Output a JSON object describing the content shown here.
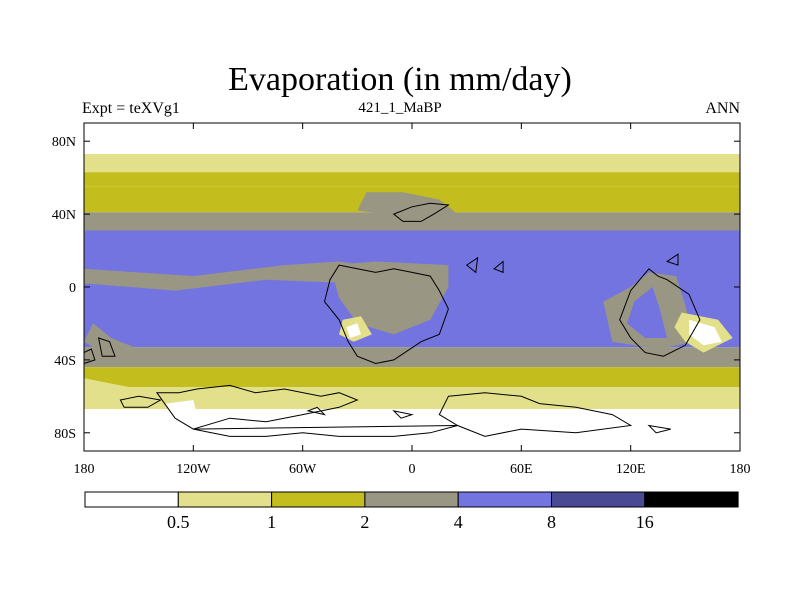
{
  "header": {
    "title": "Evaporation (in mm/day)",
    "left_label": "Expt = teXVg1",
    "center_label": "421_1_MaBP",
    "right_label": "ANN"
  },
  "colors": {
    "c0": "#ffffff",
    "c1": "#e2e08a",
    "c2": "#c3bd1d",
    "c3": "#999683",
    "c4": "#7474e0",
    "c5": "#494a94",
    "c6": "#000000"
  },
  "chart_data": {
    "type": "heatmap",
    "title": "Evaporation (in mm/day)",
    "subtitle": "421_1_MaBP",
    "xlabel": "",
    "ylabel": "",
    "xlim": [
      -180,
      180
    ],
    "ylim": [
      -90,
      90
    ],
    "x_ticks": [
      {
        "value": -180,
        "label": "180"
      },
      {
        "value": -120,
        "label": "120W"
      },
      {
        "value": -60,
        "label": "60W"
      },
      {
        "value": 0,
        "label": "0"
      },
      {
        "value": 60,
        "label": "60E"
      },
      {
        "value": 120,
        "label": "120E"
      },
      {
        "value": 180,
        "label": "180"
      }
    ],
    "y_ticks": [
      {
        "value": 80,
        "label": "80N"
      },
      {
        "value": 40,
        "label": "40N"
      },
      {
        "value": 0,
        "label": "0"
      },
      {
        "value": -40,
        "label": "40S"
      },
      {
        "value": -80,
        "label": "80S"
      }
    ],
    "colorbar": {
      "thresholds": [
        "0.5",
        "1",
        "2",
        "4",
        "8",
        "16"
      ],
      "colors": [
        "#ffffff",
        "#e2e08a",
        "#c3bd1d",
        "#999683",
        "#7474e0",
        "#494a94",
        "#000000"
      ]
    },
    "zonal_bands": [
      {
        "lat_from": 90,
        "lat_to": 73,
        "level": 0
      },
      {
        "lat_from": 73,
        "lat_to": 63,
        "level": 1
      },
      {
        "lat_from": 63,
        "lat_to": 55,
        "level": 2
      },
      {
        "lat_from": 55,
        "lat_to": 41,
        "level": 2
      },
      {
        "lat_from": 41,
        "lat_to": 31,
        "level": 3
      },
      {
        "lat_from": 31,
        "lat_to": -33,
        "level": 4
      },
      {
        "lat_from": -33,
        "lat_to": -44,
        "level": 3
      },
      {
        "lat_from": -44,
        "lat_to": -55,
        "level": 2
      },
      {
        "lat_from": -55,
        "lat_to": -67,
        "level": 1
      },
      {
        "lat_from": -67,
        "lat_to": -90,
        "level": 0
      }
    ],
    "patches": [
      {
        "level": 3,
        "points": [
          [
            -180,
            10
          ],
          [
            -120,
            6
          ],
          [
            -70,
            12
          ],
          [
            -40,
            14
          ],
          [
            -10,
            10
          ],
          [
            0,
            6
          ],
          [
            -30,
            2
          ],
          [
            -80,
            4
          ],
          [
            -130,
            -2
          ],
          [
            -180,
            2
          ]
        ]
      },
      {
        "level": 3,
        "points": [
          [
            -45,
            12
          ],
          [
            -20,
            14
          ],
          [
            20,
            12
          ],
          [
            20,
            0
          ],
          [
            10,
            -18
          ],
          [
            -10,
            -26
          ],
          [
            -30,
            -20
          ],
          [
            -40,
            -6
          ]
        ]
      },
      {
        "level": 3,
        "points": [
          [
            -25,
            52
          ],
          [
            -5,
            52
          ],
          [
            15,
            48
          ],
          [
            25,
            40
          ],
          [
            5,
            36
          ],
          [
            -15,
            40
          ],
          [
            -30,
            42
          ]
        ]
      },
      {
        "level": 3,
        "points": [
          [
            105,
            -8
          ],
          [
            120,
            0
          ],
          [
            130,
            8
          ],
          [
            145,
            6
          ],
          [
            150,
            -10
          ],
          [
            155,
            -30
          ],
          [
            135,
            -34
          ],
          [
            110,
            -30
          ]
        ]
      },
      {
        "level": 4,
        "points": [
          [
            122,
            -8
          ],
          [
            132,
            0
          ],
          [
            136,
            -12
          ],
          [
            140,
            -28
          ],
          [
            128,
            -28
          ],
          [
            118,
            -20
          ]
        ]
      },
      {
        "level": 3,
        "points": [
          [
            -175,
            -20
          ],
          [
            -165,
            -28
          ],
          [
            -150,
            -34
          ],
          [
            -170,
            -36
          ],
          [
            -180,
            -30
          ]
        ]
      },
      {
        "level": 1,
        "points": [
          [
            -38,
            -18
          ],
          [
            -28,
            -16
          ],
          [
            -22,
            -26
          ],
          [
            -32,
            -30
          ],
          [
            -40,
            -26
          ]
        ]
      },
      {
        "level": 0,
        "points": [
          [
            -36,
            -22
          ],
          [
            -30,
            -20
          ],
          [
            -28,
            -26
          ],
          [
            -34,
            -28
          ]
        ]
      },
      {
        "level": 1,
        "points": [
          [
            148,
            -14
          ],
          [
            168,
            -18
          ],
          [
            176,
            -28
          ],
          [
            160,
            -36
          ],
          [
            150,
            -30
          ],
          [
            144,
            -22
          ]
        ]
      },
      {
        "level": 0,
        "points": [
          [
            152,
            -18
          ],
          [
            166,
            -22
          ],
          [
            170,
            -30
          ],
          [
            160,
            -32
          ],
          [
            152,
            -26
          ]
        ]
      },
      {
        "level": 1,
        "points": [
          [
            -180,
            -50
          ],
          [
            -140,
            -58
          ],
          [
            -110,
            -62
          ],
          [
            -140,
            -66
          ],
          [
            -180,
            -60
          ]
        ]
      },
      {
        "level": 0,
        "points": [
          [
            -135,
            -64
          ],
          [
            -120,
            -62
          ],
          [
            -118,
            -70
          ],
          [
            -132,
            -72
          ]
        ]
      }
    ],
    "land_outlines": [
      [
        [
          -40,
          12
        ],
        [
          -30,
          10
        ],
        [
          -20,
          8
        ],
        [
          -10,
          10
        ],
        [
          0,
          8
        ],
        [
          10,
          6
        ],
        [
          15,
          -2
        ],
        [
          20,
          -12
        ],
        [
          15,
          -26
        ],
        [
          5,
          -30
        ],
        [
          -10,
          -40
        ],
        [
          -20,
          -42
        ],
        [
          -30,
          -38
        ],
        [
          -35,
          -30
        ],
        [
          -40,
          -18
        ],
        [
          -48,
          -8
        ],
        [
          -45,
          4
        ]
      ],
      [
        [
          -10,
          40
        ],
        [
          0,
          44
        ],
        [
          10,
          46
        ],
        [
          20,
          45
        ],
        [
          12,
          40
        ],
        [
          5,
          36
        ],
        [
          -5,
          36
        ]
      ],
      [
        [
          120,
          -2
        ],
        [
          125,
          4
        ],
        [
          130,
          10
        ],
        [
          135,
          6
        ],
        [
          140,
          4
        ],
        [
          152,
          -4
        ],
        [
          158,
          -18
        ],
        [
          150,
          -32
        ],
        [
          138,
          -38
        ],
        [
          128,
          -36
        ],
        [
          120,
          -28
        ],
        [
          114,
          -18
        ]
      ],
      [
        [
          -172,
          -28
        ],
        [
          -166,
          -30
        ],
        [
          -163,
          -38
        ],
        [
          -170,
          -38
        ]
      ],
      [
        [
          -180,
          -36
        ],
        [
          -176,
          -34
        ],
        [
          -174,
          -40
        ],
        [
          -180,
          -42
        ]
      ],
      [
        [
          -140,
          -58
        ],
        [
          -128,
          -58
        ],
        [
          -118,
          -56
        ],
        [
          -100,
          -54
        ],
        [
          -86,
          -58
        ],
        [
          -70,
          -56
        ],
        [
          -50,
          -60
        ],
        [
          -40,
          -58
        ],
        [
          -30,
          -62
        ],
        [
          -40,
          -66
        ],
        [
          -60,
          -70
        ],
        [
          -80,
          -74
        ],
        [
          -100,
          -72
        ],
        [
          -120,
          -78
        ],
        [
          -130,
          -72
        ]
      ],
      [
        [
          -160,
          -62
        ],
        [
          -150,
          -60
        ],
        [
          -138,
          -62
        ],
        [
          -145,
          -66
        ],
        [
          -158,
          -66
        ]
      ],
      [
        [
          20,
          -60
        ],
        [
          40,
          -58
        ],
        [
          60,
          -60
        ],
        [
          70,
          -64
        ],
        [
          90,
          -66
        ],
        [
          110,
          -70
        ],
        [
          120,
          -76
        ],
        [
          90,
          -80
        ],
        [
          60,
          -78
        ],
        [
          40,
          -82
        ],
        [
          25,
          -76
        ],
        [
          15,
          -70
        ]
      ],
      [
        [
          -120,
          -78
        ],
        [
          -100,
          -82
        ],
        [
          -80,
          -82
        ],
        [
          -60,
          -80
        ],
        [
          -40,
          -82
        ],
        [
          -10,
          -82
        ],
        [
          10,
          -80
        ],
        [
          25,
          -76
        ]
      ],
      [
        [
          -57,
          -68
        ],
        [
          -52,
          -66
        ],
        [
          -48,
          -70
        ]
      ],
      [
        [
          -10,
          -68
        ],
        [
          0,
          -70
        ],
        [
          -6,
          -72
        ]
      ],
      [
        [
          130,
          -76
        ],
        [
          142,
          -78
        ],
        [
          134,
          -80
        ]
      ],
      [
        [
          30,
          12
        ],
        [
          35,
          8
        ],
        [
          36,
          16
        ]
      ],
      [
        [
          45,
          10
        ],
        [
          50,
          8
        ],
        [
          50,
          14
        ]
      ],
      [
        [
          140,
          14
        ],
        [
          146,
          12
        ],
        [
          146,
          18
        ]
      ]
    ]
  }
}
